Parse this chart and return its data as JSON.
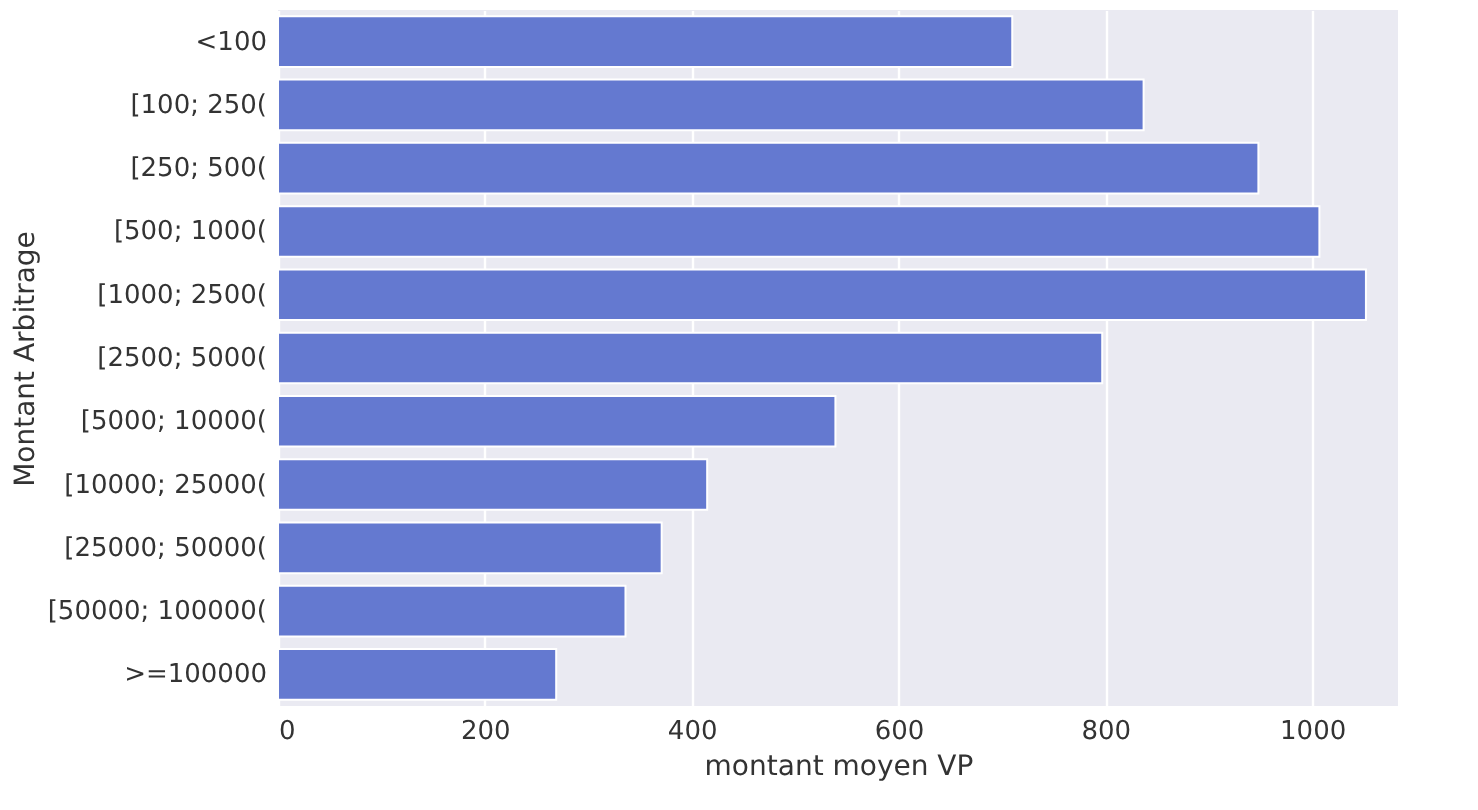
{
  "chart_data": {
    "type": "bar",
    "orientation": "horizontal",
    "xlabel": "montant moyen VP",
    "ylabel": "Montant Arbitrage",
    "categories": [
      "<100",
      "[100; 250(",
      "[250; 500(",
      "[500; 1000(",
      "[1000; 2500(",
      "[2500; 5000(",
      "[5000; 10000(",
      "[10000; 25000(",
      "[25000; 50000(",
      "[50000; 100000(",
      ">=100000"
    ],
    "values": [
      710,
      837,
      948,
      1007,
      1052,
      797,
      539,
      415,
      371,
      336,
      269
    ],
    "color": "#6479d0",
    "xlim": [
      0,
      1083
    ],
    "xticks": [
      0,
      200,
      400,
      600,
      800,
      1000
    ],
    "grid": "x"
  }
}
